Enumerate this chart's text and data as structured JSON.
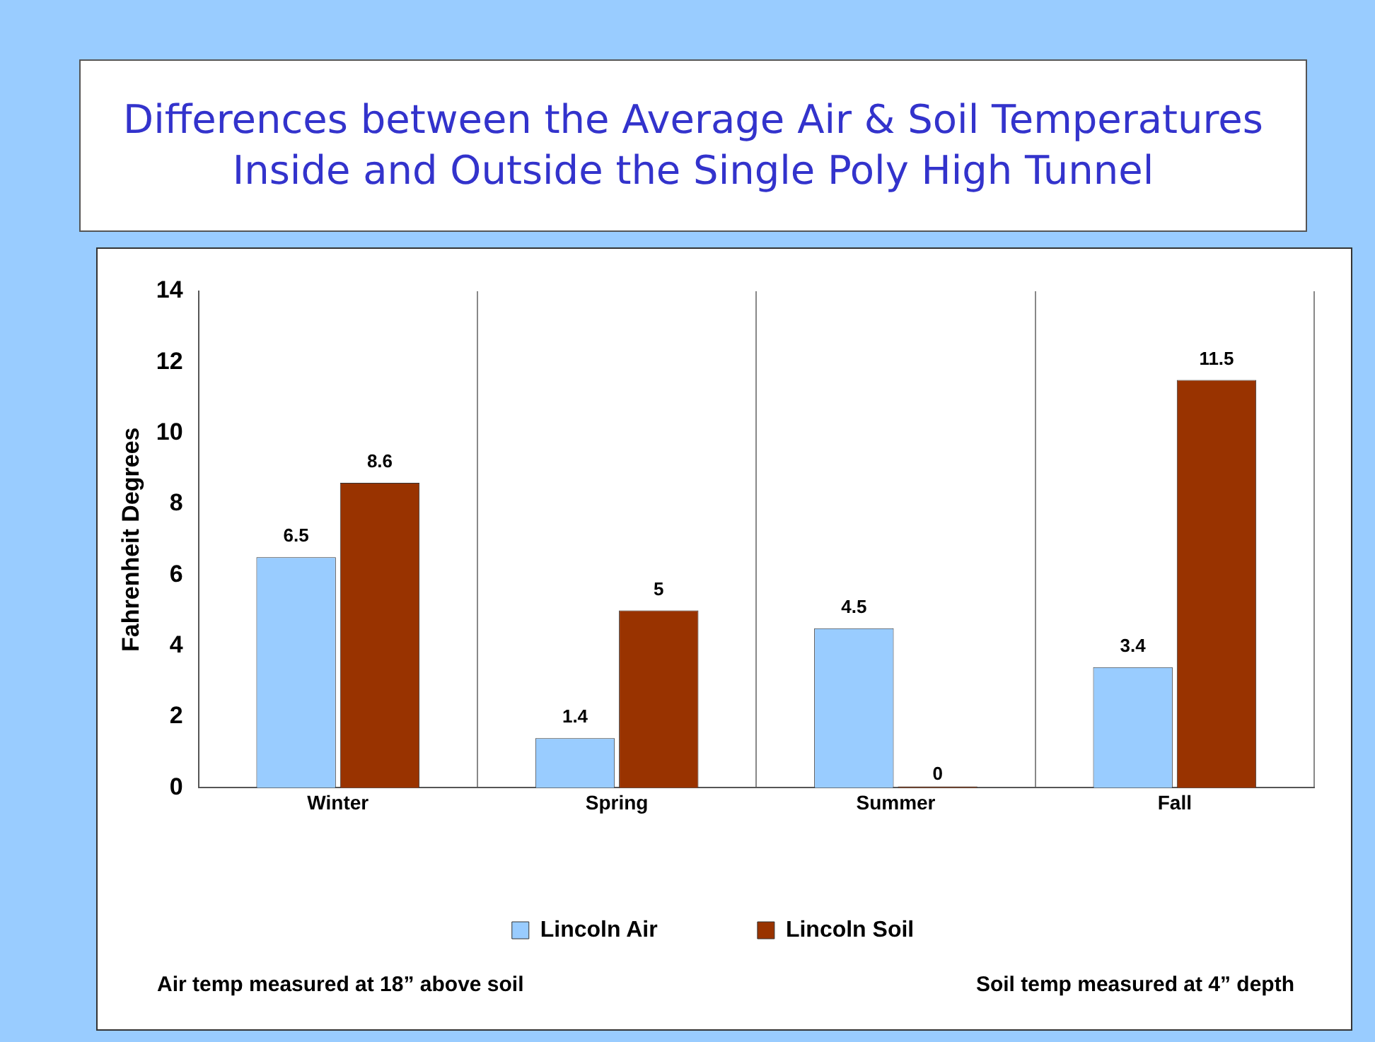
{
  "chart_data": {
    "type": "bar",
    "title": "Differences between the Average Air & Soil Temperatures\nInside and Outside the Single Poly High Tunnel",
    "ylabel": "Fahrenheit Degrees",
    "categories": [
      "Winter",
      "Spring",
      "Summer",
      "Fall"
    ],
    "series": [
      {
        "name": "Lincoln Air",
        "color": "#99ccff",
        "values": [
          6.5,
          1.4,
          4.5,
          3.4
        ]
      },
      {
        "name": "Lincoln Soil",
        "color": "#993300",
        "values": [
          8.6,
          5,
          0,
          11.5
        ]
      }
    ],
    "ylim": [
      0,
      14
    ],
    "yticks": [
      0,
      2,
      4,
      6,
      8,
      10,
      12,
      14
    ],
    "grid": "x",
    "legend": "bottom",
    "data_labels": true,
    "annotations": [
      "Air temp measured at 18” above soil",
      "Soil temp measured at 4” depth"
    ]
  }
}
